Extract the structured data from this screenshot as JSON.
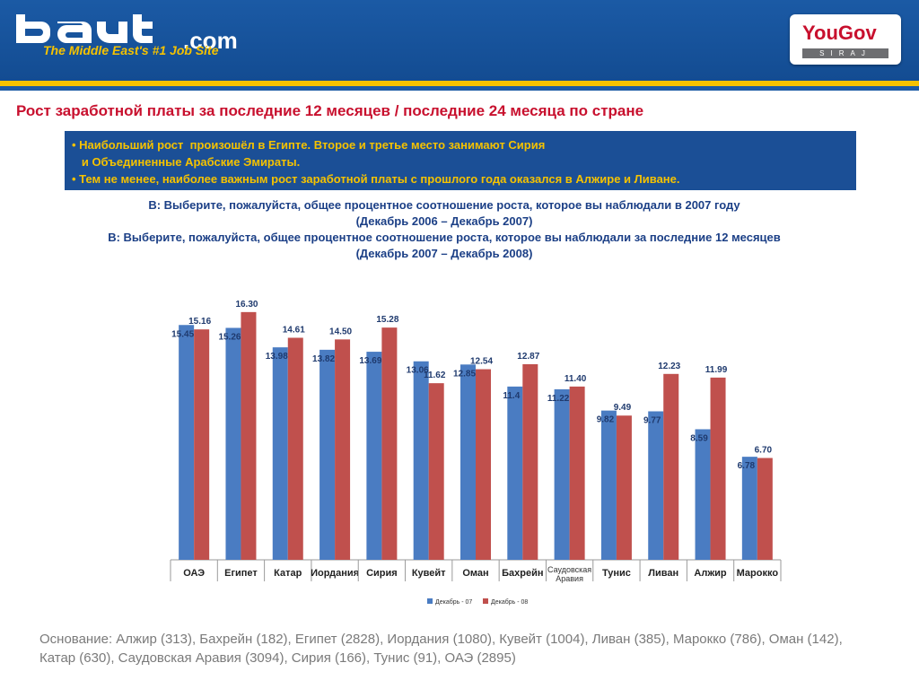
{
  "header": {
    "logo_suffix": ".com",
    "tagline": "The Middle East's #1 Job Site",
    "partner_name_you": "You",
    "partner_name_gov": "Gov",
    "partner_sub": "SIRAJ"
  },
  "title": "Рост заработной платы  за последние 12 месяцев / последние 24 месяца по стране",
  "bullets": [
    "• Наибольший рост  произошёл в Египте. Второе и третье место занимают Сирия",
    "   и Объединенные Арабские Эмираты.",
    "• Тем не менее, наиболее важным рост заработной платы с прошлого года оказался в Алжире и Ливане."
  ],
  "questions": [
    "В: Выберите, пожалуйста, общее процентное соотношение роста, которое вы наблюдали в  2007 году",
    "(Декабрь 2006 – Декабрь 2007)",
    "В: Выберите, пожалуйста, общее процентное соотношение роста, которое вы наблюдали за последние 12 месяцев",
    "(Декабрь 2007 – Декабрь 2008)"
  ],
  "chart_data": {
    "type": "bar",
    "categories": [
      "ОАЭ",
      "Египет",
      "Катар",
      "Иордания",
      "Сирия",
      "Кувейт",
      "Оман",
      "Бахрейн",
      "Саудовская Аравия",
      "Тунис",
      "Ливан",
      "Алжир",
      "Марокко"
    ],
    "series": [
      {
        "name": "Декабрь - 07",
        "color": "#4a7cc2",
        "values": [
          15.45,
          15.26,
          13.98,
          13.82,
          13.69,
          13.06,
          12.85,
          11.4,
          11.22,
          9.82,
          9.77,
          8.59,
          6.78
        ],
        "labels": [
          "15.45",
          "15.26",
          "13.98",
          "13.82",
          "13.69",
          "13.06",
          "12.85",
          "11.4",
          "11.22",
          "9.82",
          "9.77",
          "8.59",
          "6.78"
        ]
      },
      {
        "name": "Декабрь - 08",
        "color": "#c0504d",
        "values": [
          15.16,
          16.3,
          14.61,
          14.5,
          15.28,
          11.62,
          12.54,
          12.87,
          11.4,
          9.49,
          12.23,
          11.99,
          6.7
        ],
        "labels": [
          "15.16",
          "16.30",
          "14.61",
          "14.50",
          "15.28",
          "11.62",
          "12.54",
          "12.87",
          "11.40",
          "9.49",
          "12.23",
          "11.99",
          "6.70"
        ]
      }
    ],
    "ylim": [
      0,
      17
    ],
    "legend_position": "bottom",
    "grid": false
  },
  "base": "Основание: Алжир (313), Бахрейн (182), Египет (2828), Иордания (1080), Кувейт (1004), Ливан  (385), Марокко (786), Оман (142),\nКатар (630), Саудовская Аравия (3094), Сирия (166), Тунис (91), ОАЭ (2895)"
}
